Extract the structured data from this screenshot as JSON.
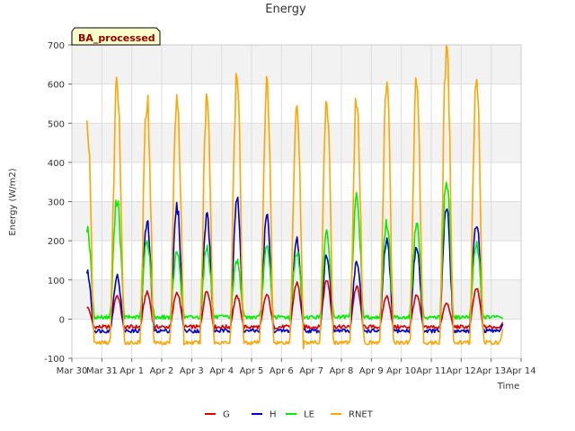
{
  "chart_data": {
    "type": "line",
    "title": "Energy",
    "xlabel": "Time",
    "ylabel": "Energy (W/m2)",
    "badge": "BA_processed",
    "xlim": [
      "Mar 30",
      "Apr 14"
    ],
    "ylim": [
      -100,
      700
    ],
    "x_ticks": [
      "Mar 30",
      "Mar 31",
      "Apr 1",
      "Apr 2",
      "Apr 3",
      "Apr 4",
      "Apr 5",
      "Apr 6",
      "Apr 7",
      "Apr 8",
      "Apr 9",
      "Apr 10",
      "Apr 11",
      "Apr 12",
      "Apr 13",
      "Apr 14"
    ],
    "y_ticks": [
      -100,
      0,
      100,
      200,
      300,
      400,
      500,
      600,
      700
    ],
    "grid": true,
    "legend_position": "bottom",
    "data_start": "Mar 30",
    "data_end": "Apr 13",
    "days": [
      "Mar 30",
      "Mar 31",
      "Apr 1",
      "Apr 2",
      "Apr 3",
      "Apr 4",
      "Apr 5",
      "Apr 6",
      "Apr 7",
      "Apr 8",
      "Apr 9",
      "Apr 10",
      "Apr 11",
      "Apr 12",
      "Apr 13"
    ],
    "series": [
      {
        "name": "G",
        "color": "#dd0000",
        "night": -20,
        "daily_peak": [
          30,
          60,
          68,
          68,
          72,
          58,
          62,
          92,
          100,
          82,
          58,
          60,
          40,
          78,
          0
        ]
      },
      {
        "name": "H",
        "color": "#0000cc",
        "night": -30,
        "daily_peak": [
          120,
          110,
          245,
          285,
          265,
          305,
          262,
          205,
          165,
          145,
          200,
          185,
          285,
          250,
          0
        ]
      },
      {
        "name": "LE",
        "color": "#00ee00",
        "night": 5,
        "daily_peak": [
          235,
          310,
          200,
          170,
          185,
          150,
          180,
          170,
          215,
          310,
          245,
          240,
          355,
          190,
          0
        ]
      },
      {
        "name": "RNET",
        "color": "#ffa500",
        "night": -60,
        "daily_peak": [
          500,
          610,
          562,
          578,
          568,
          612,
          592,
          557,
          548,
          565,
          600,
          600,
          695,
          608,
          0
        ]
      }
    ]
  }
}
